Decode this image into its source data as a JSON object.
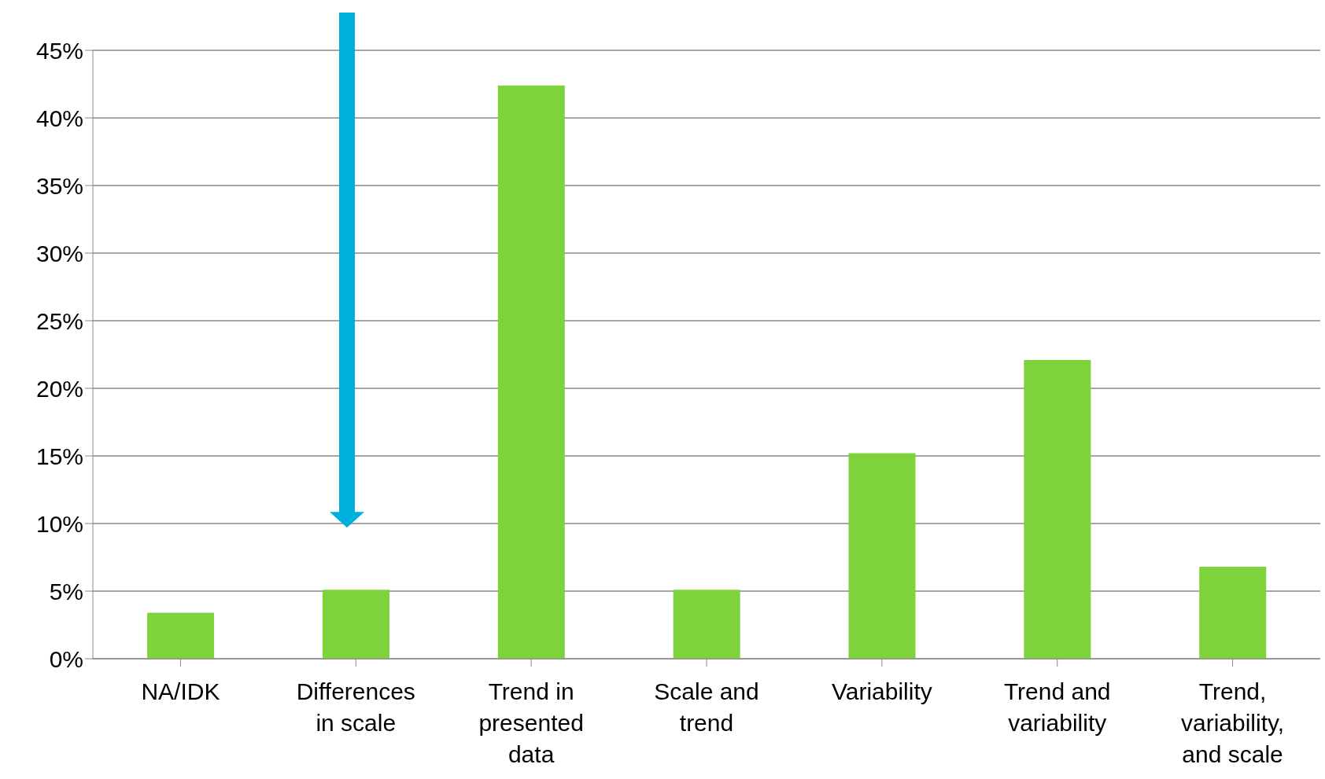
{
  "chart_data": {
    "type": "bar",
    "categories": [
      "NA/IDK",
      "Differences in scale",
      "Trend in presented data",
      "Scale and trend",
      "Variability",
      "Trend and variability",
      "Trend, variability, and scale"
    ],
    "values": [
      3.4,
      5.1,
      42.4,
      5.1,
      15.2,
      22.1,
      6.8
    ],
    "color": "#7ed23c",
    "ylim": [
      0,
      45
    ],
    "yticks": [
      {
        "value": 0,
        "label": "0%"
      },
      {
        "value": 5,
        "label": "5%"
      },
      {
        "value": 10,
        "label": "10%"
      },
      {
        "value": 15,
        "label": "15%"
      },
      {
        "value": 20,
        "label": "20%"
      },
      {
        "value": 25,
        "label": "25%"
      },
      {
        "value": 30,
        "label": "30%"
      },
      {
        "value": 35,
        "label": "35%"
      },
      {
        "value": 40,
        "label": "40%"
      },
      {
        "value": 45,
        "label": "45%"
      }
    ],
    "grid": "y",
    "legend": false
  }
}
